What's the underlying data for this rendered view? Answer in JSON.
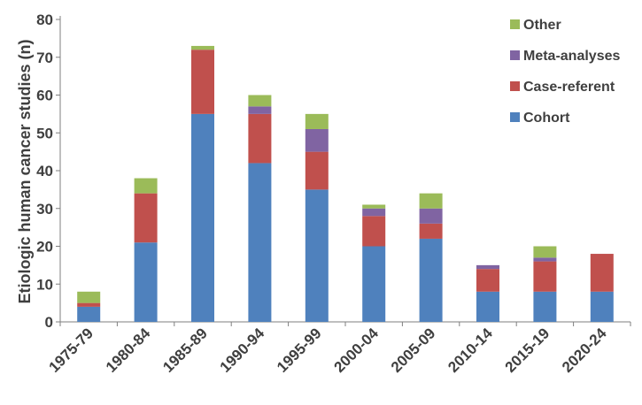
{
  "chart_data": {
    "type": "bar",
    "stacked": true,
    "title": "",
    "xlabel": "",
    "ylabel": "Etiologic human cancer studies (n)",
    "ylim": [
      0,
      80
    ],
    "yticks": [
      0,
      10,
      20,
      30,
      40,
      50,
      60,
      70,
      80
    ],
    "grid": false,
    "legend_position": "top-right",
    "categories": [
      "1975-79",
      "1980-84",
      "1985-89",
      "1990-94",
      "1995-99",
      "2000-04",
      "2005-09",
      "2010-14",
      "2015-19",
      "2020-24"
    ],
    "series": [
      {
        "name": "Cohort",
        "color": "#4f81bd",
        "values": [
          4,
          21,
          55,
          42,
          35,
          20,
          22,
          8,
          8,
          8
        ]
      },
      {
        "name": "Case-referent",
        "color": "#c0504d",
        "values": [
          1,
          13,
          17,
          13,
          10,
          8,
          4,
          6,
          8,
          10
        ]
      },
      {
        "name": "Meta-analyses",
        "color": "#8064a2",
        "values": [
          0,
          0,
          0,
          2,
          6,
          2,
          4,
          1,
          1,
          0
        ]
      },
      {
        "name": "Other",
        "color": "#9bbb59",
        "values": [
          3,
          4,
          1,
          3,
          4,
          1,
          4,
          0,
          3,
          0
        ]
      }
    ],
    "legend_order": [
      "Other",
      "Meta-analyses",
      "Case-referent",
      "Cohort"
    ]
  }
}
